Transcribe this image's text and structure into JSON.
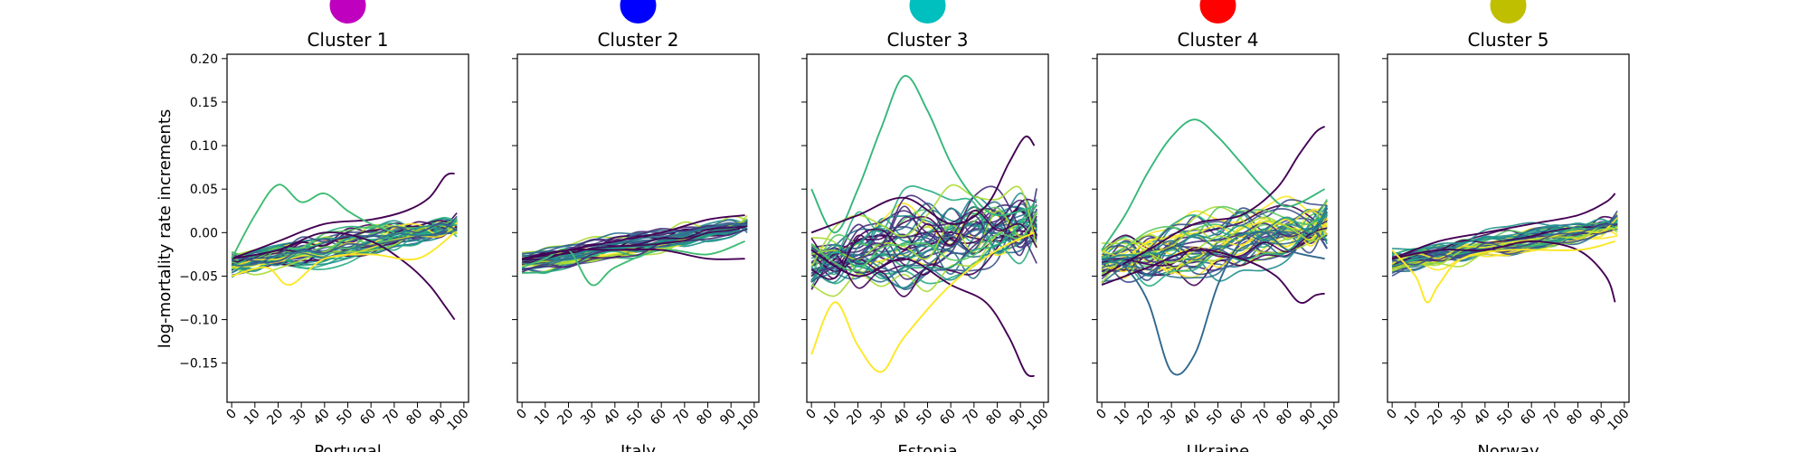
{
  "figure": {
    "ylabel": "log-mortality rate increments"
  },
  "chart_data": {
    "type": "line",
    "colormap": "viridis",
    "x_ticks": [
      0,
      10,
      20,
      30,
      40,
      50,
      60,
      70,
      80,
      90,
      100
    ],
    "y_ticks": [
      -0.15,
      -0.1,
      -0.05,
      0.0,
      0.05,
      0.1,
      0.15,
      0.2
    ],
    "y_tick_labels": [
      "−0.15",
      "−0.10",
      "−0.05",
      "0.00",
      "0.05",
      "0.10",
      "0.15",
      "0.20"
    ],
    "xlim": [
      -2,
      102
    ],
    "ylim": [
      -0.195,
      0.205
    ],
    "sharey": true,
    "grid": false,
    "panels": [
      {
        "title": "Cluster 1",
        "xlabel": "Portugal",
        "marker_color": "#bf00bf",
        "line_count": 42,
        "key_lines": [
          {
            "color": "#440154",
            "ages": [
              0,
              20,
              40,
              60,
              75,
              85,
              92,
              96
            ],
            "values": [
              -0.03,
              -0.02,
              0.0,
              -0.01,
              -0.035,
              -0.06,
              -0.085,
              -0.1
            ]
          },
          {
            "color": "#440154",
            "ages": [
              0,
              20,
              40,
              60,
              75,
              85,
              92,
              96
            ],
            "values": [
              -0.03,
              -0.01,
              0.01,
              0.015,
              0.025,
              0.04,
              0.065,
              0.068
            ]
          },
          {
            "color": "#3fbc73",
            "ages": [
              0,
              10,
              20,
              30,
              40,
              50,
              60,
              70
            ],
            "values": [
              -0.03,
              0.02,
              0.055,
              0.035,
              0.045,
              0.025,
              0.01,
              0.0
            ]
          },
          {
            "color": "#fde725",
            "ages": [
              0,
              15,
              25,
              40,
              60,
              80,
              96
            ],
            "values": [
              -0.05,
              -0.04,
              -0.06,
              -0.03,
              -0.025,
              -0.03,
              0.0
            ]
          }
        ]
      },
      {
        "title": "Cluster 2",
        "xlabel": "Italy",
        "marker_color": "#0000ff",
        "line_count": 42,
        "key_lines": [
          {
            "color": "#3fbc73",
            "ages": [
              0,
              10,
              20,
              30,
              40,
              60,
              80,
              96
            ],
            "values": [
              -0.04,
              -0.03,
              -0.02,
              -0.06,
              -0.04,
              -0.02,
              -0.025,
              -0.01
            ]
          },
          {
            "color": "#440154",
            "ages": [
              0,
              20,
              40,
              60,
              80,
              96
            ],
            "values": [
              -0.03,
              -0.02,
              -0.01,
              0.0,
              0.015,
              0.02
            ]
          },
          {
            "color": "#440154",
            "ages": [
              0,
              20,
              40,
              60,
              80,
              96
            ],
            "values": [
              -0.03,
              -0.02,
              -0.02,
              -0.02,
              -0.03,
              -0.03
            ]
          }
        ]
      },
      {
        "title": "Cluster 3",
        "xlabel": "Estonia",
        "marker_color": "#00bfbf",
        "line_count": 44,
        "key_lines": [
          {
            "color": "#35b779",
            "ages": [
              0,
              10,
              20,
              30,
              40,
              50,
              60,
              70,
              80,
              96
            ],
            "values": [
              0.05,
              0.0,
              0.05,
              0.12,
              0.18,
              0.14,
              0.08,
              0.04,
              0.02,
              0.03
            ]
          },
          {
            "color": "#440154",
            "ages": [
              0,
              20,
              40,
              60,
              75,
              85,
              92,
              96
            ],
            "values": [
              0.0,
              0.02,
              0.04,
              0.01,
              0.03,
              0.08,
              0.11,
              0.1
            ]
          },
          {
            "color": "#440154",
            "ages": [
              0,
              20,
              40,
              60,
              75,
              85,
              92,
              96
            ],
            "values": [
              -0.02,
              -0.05,
              -0.03,
              -0.06,
              -0.08,
              -0.12,
              -0.16,
              -0.165
            ]
          },
          {
            "color": "#fde725",
            "ages": [
              0,
              10,
              20,
              30,
              40,
              60,
              80,
              96
            ],
            "values": [
              -0.14,
              -0.08,
              -0.13,
              -0.16,
              -0.12,
              -0.06,
              -0.02,
              0.0
            ]
          }
        ]
      },
      {
        "title": "Cluster 4",
        "xlabel": "Ukraine",
        "marker_color": "#ff0000",
        "line_count": 44,
        "key_lines": [
          {
            "color": "#35b779",
            "ages": [
              0,
              10,
              20,
              30,
              40,
              50,
              60,
              70,
              80,
              96
            ],
            "values": [
              -0.02,
              0.02,
              0.07,
              0.11,
              0.13,
              0.11,
              0.08,
              0.05,
              0.03,
              0.05
            ]
          },
          {
            "color": "#440154",
            "ages": [
              0,
              20,
              40,
              60,
              75,
              85,
              92,
              96
            ],
            "values": [
              -0.05,
              -0.02,
              0.01,
              0.02,
              0.05,
              0.09,
              0.115,
              0.122
            ]
          },
          {
            "color": "#31688e",
            "ages": [
              0,
              10,
              20,
              30,
              40,
              50,
              60,
              70,
              80,
              96
            ],
            "values": [
              -0.03,
              -0.04,
              -0.08,
              -0.16,
              -0.14,
              -0.06,
              -0.01,
              0.0,
              -0.02,
              -0.03
            ]
          },
          {
            "color": "#440154",
            "ages": [
              0,
              20,
              40,
              60,
              75,
              85,
              92,
              96
            ],
            "values": [
              -0.06,
              -0.04,
              -0.02,
              -0.03,
              -0.05,
              -0.08,
              -0.072,
              -0.07
            ]
          }
        ]
      },
      {
        "title": "Cluster 5",
        "xlabel": "Norway",
        "marker_color": "#bfbf00",
        "line_count": 42,
        "key_lines": [
          {
            "color": "#440154",
            "ages": [
              0,
              20,
              40,
              60,
              80,
              92,
              96
            ],
            "values": [
              -0.03,
              -0.02,
              -0.02,
              -0.01,
              -0.02,
              -0.05,
              -0.08
            ]
          },
          {
            "color": "#440154",
            "ages": [
              0,
              20,
              40,
              60,
              80,
              92,
              96
            ],
            "values": [
              -0.03,
              -0.01,
              0.0,
              0.01,
              0.02,
              0.035,
              0.045
            ]
          },
          {
            "color": "#fde725",
            "ages": [
              0,
              10,
              15,
              20,
              30,
              50,
              80,
              96
            ],
            "values": [
              -0.02,
              -0.05,
              -0.08,
              -0.06,
              -0.03,
              -0.02,
              -0.02,
              -0.01
            ]
          }
        ]
      }
    ]
  }
}
